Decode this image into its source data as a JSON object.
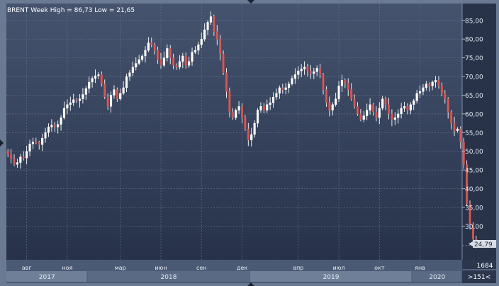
{
  "chart_data": {
    "type": "candlestick",
    "title": "BRENT Week High = 86,73 Low = 21,65",
    "y_ticks": [
      "30,00",
      "35,00",
      "40,00",
      "45,00",
      "50,00",
      "55,00",
      "60,00",
      "65,00",
      "70,00",
      "75,00",
      "80,00",
      "85,00"
    ],
    "y_tick_values": [
      30,
      35,
      40,
      45,
      50,
      55,
      60,
      65,
      70,
      75,
      80,
      85
    ],
    "ylim": [
      21.0,
      89.5
    ],
    "month_ticks": [
      {
        "label": "авг",
        "week": 6
      },
      {
        "label": "ноя",
        "week": 19
      },
      {
        "label": "мар",
        "week": 36
      },
      {
        "label": "июн",
        "week": 49
      },
      {
        "label": "сен",
        "week": 62
      },
      {
        "label": "дек",
        "week": 75
      },
      {
        "label": "апр",
        "week": 93
      },
      {
        "label": "июл",
        "week": 106
      },
      {
        "label": "окт",
        "week": 119
      },
      {
        "label": "янв",
        "week": 132
      }
    ],
    "years": [
      {
        "label": "2017",
        "start": -0.5,
        "end": 25.5
      },
      {
        "label": "2018",
        "start": 25.5,
        "end": 77.5
      },
      {
        "label": "2019",
        "start": 77.5,
        "end": 129.5
      },
      {
        "label": "2020",
        "start": 129.5,
        "end": 145.5
      }
    ],
    "x_visible": [
      -0.5,
      145.5
    ],
    "last_price": "24,79",
    "last_value": 24.79,
    "bar_count": "1684",
    "scroll_label": ">151<",
    "closes": [
      49.2,
      48.0,
      46.5,
      47.0,
      48.5,
      48.2,
      50.0,
      52.0,
      52.5,
      52.4,
      51.8,
      53.5,
      55.0,
      56.5,
      57.0,
      56.5,
      57.2,
      59.0,
      61.5,
      62.5,
      63.0,
      63.8,
      63.5,
      64.0,
      65.2,
      66.8,
      68.5,
      69.5,
      70.2,
      70.5,
      68.0,
      64.5,
      62.0,
      65.0,
      66.5,
      64.0,
      65.5,
      67.0,
      70.0,
      71.0,
      72.5,
      73.5,
      74.5,
      75.5,
      77.0,
      79.0,
      78.5,
      77.0,
      74.5,
      73.0,
      75.0,
      77.5,
      75.0,
      73.0,
      72.5,
      74.0,
      75.5,
      73.0,
      74.0,
      76.5,
      77.0,
      78.5,
      80.0,
      82.5,
      84.5,
      86.0,
      82.0,
      80.0,
      76.0,
      71.0,
      66.0,
      60.5,
      59.0,
      61.0,
      62.0,
      59.0,
      56.0,
      53.0,
      54.5,
      57.5,
      61.0,
      62.0,
      61.0,
      62.5,
      63.0,
      64.5,
      65.5,
      67.0,
      66.5,
      67.0,
      68.0,
      69.5,
      70.5,
      71.5,
      72.0,
      72.5,
      71.5,
      70.8,
      71.3,
      72.2,
      70.5,
      66.5,
      63.0,
      61.0,
      62.5,
      64.0,
      67.5,
      69.0,
      68.2,
      66.5,
      64.0,
      62.0,
      60.0,
      58.5,
      59.5,
      61.0,
      62.5,
      60.5,
      59.0,
      61.5,
      64.0,
      62.5,
      60.0,
      58.5,
      59.0,
      60.0,
      61.5,
      62.0,
      61.0,
      62.5,
      63.5,
      65.5,
      66.0,
      67.0,
      68.0,
      67.5,
      68.5,
      69.0,
      67.5,
      65.5,
      64.0,
      60.5,
      57.5,
      55.5,
      56.0,
      52.5,
      46.5,
      36.0,
      30.5,
      26.5,
      24.79
    ]
  }
}
